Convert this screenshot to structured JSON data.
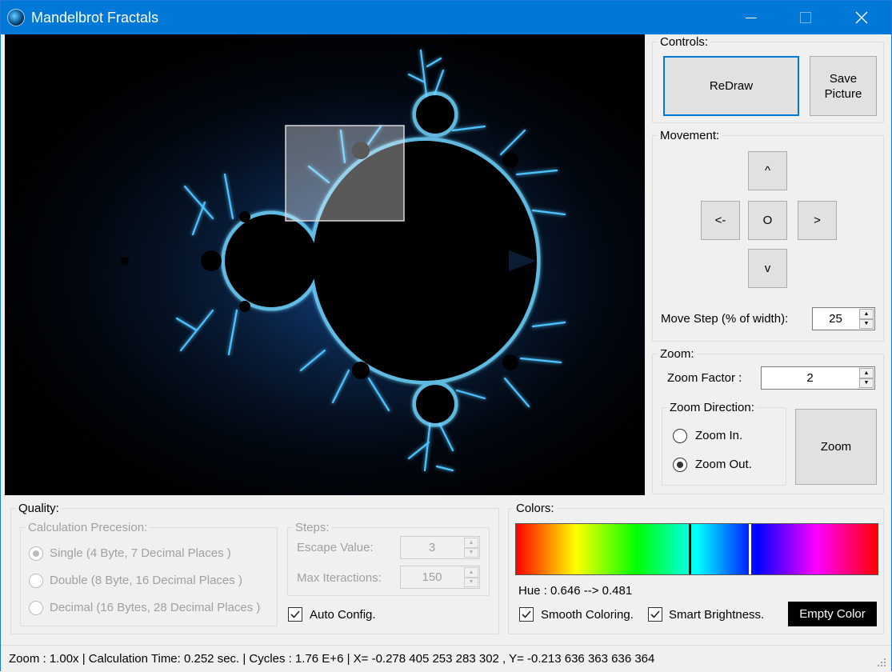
{
  "window": {
    "title": "Mandelbrot Fractals",
    "accent": "#0078d7",
    "icons": {
      "app": "fractal-app-icon",
      "minimize": "minimize-icon",
      "maximize": "maximize-icon",
      "close": "close-icon"
    }
  },
  "controls": {
    "legend": "Controls:",
    "redraw_label": "ReDraw",
    "save_label": "Save Picture"
  },
  "movement": {
    "legend": "Movement:",
    "up_label": "^",
    "left_label": "<-",
    "center_label": "O",
    "right_label": ">",
    "down_label": "v",
    "move_step_label": "Move Step (% of width):",
    "move_step_value": "25"
  },
  "zoom": {
    "legend": "Zoom:",
    "factor_label": "Zoom Factor :",
    "factor_value": "2",
    "direction_legend": "Zoom Direction:",
    "zoom_in_label": "Zoom In.",
    "zoom_out_label": "Zoom Out.",
    "selected_direction": "zoom-out",
    "zoom_button_label": "Zoom"
  },
  "quality": {
    "legend": "Quality:",
    "precision_legend": "Calculation Precesion:",
    "single_label": "Single (4 Byte, 7 Decimal Places )",
    "double_label": "Double (8 Byte, 16 Decimal Places )",
    "decimal_label": "Decimal (16 Bytes, 28 Decimal Places )",
    "selected_precision": "single",
    "steps_legend": "Steps:",
    "escape_label": "Escape Value:",
    "escape_value": "3",
    "max_iter_label": "Max Iteractions:",
    "max_iter_value": "150",
    "auto_config_label": "Auto Config.",
    "auto_config_checked": true
  },
  "colors": {
    "legend": "Colors:",
    "hue_text": "Hue : 0.646 --> 0.481",
    "hue_start": 0.646,
    "hue_end": 0.481,
    "smooth_label": "Smooth Coloring.",
    "smooth_checked": true,
    "smart_label": "Smart Brightness.",
    "smart_checked": true,
    "empty_color_label": "Empty Color",
    "empty_color": "#000000"
  },
  "status": {
    "text": "Zoom : 1.00x  |  Calculation Time: 0.252 sec.  |  Cycles : 1.76 E+6  |  X= -0.278 405 253 283 302  ,  Y= -0.213 636 363 636 364"
  }
}
